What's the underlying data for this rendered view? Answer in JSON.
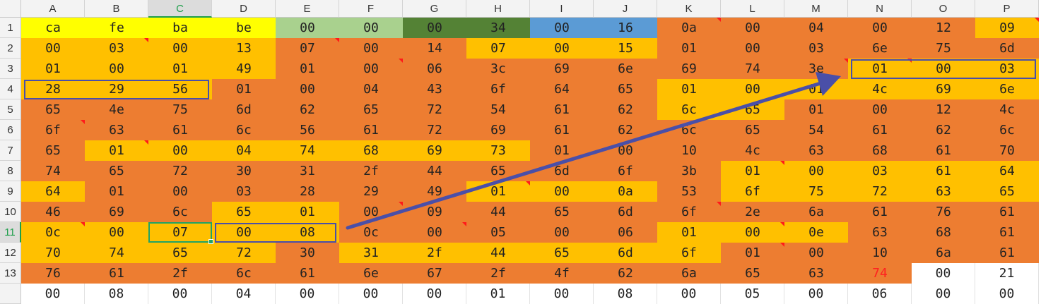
{
  "columns": [
    "A",
    "B",
    "C",
    "D",
    "E",
    "F",
    "G",
    "H",
    "I",
    "J",
    "K",
    "L",
    "M",
    "N",
    "O",
    "P"
  ],
  "rows": [
    "1",
    "2",
    "3",
    "4",
    "5",
    "6",
    "7",
    "8",
    "9",
    "10",
    "11",
    "12",
    "13",
    ""
  ],
  "selected_column": "C",
  "selected_row": "11",
  "colors": {
    "yellow": "#ffff00",
    "light_green": "#a9d18e",
    "dark_green": "#548235",
    "blue": "#5b9bd5",
    "orange": "#ed7d31",
    "gold": "#ffc000",
    "white": "#ffffff",
    "annotation_blue": "#4a4fa8",
    "active_green": "#21a366",
    "red_text": "#ff2020"
  },
  "cells": [
    [
      {
        "v": "ca",
        "c": "yellow"
      },
      {
        "v": "fe",
        "c": "yellow"
      },
      {
        "v": "ba",
        "c": "yellow"
      },
      {
        "v": "be",
        "c": "yellow"
      },
      {
        "v": "00",
        "c": "light_green"
      },
      {
        "v": "00",
        "c": "light_green"
      },
      {
        "v": "00",
        "c": "dark_green"
      },
      {
        "v": "34",
        "c": "dark_green"
      },
      {
        "v": "00",
        "c": "blue"
      },
      {
        "v": "16",
        "c": "blue"
      },
      {
        "v": "0a",
        "c": "orange",
        "n": true
      },
      {
        "v": "00",
        "c": "orange"
      },
      {
        "v": "04",
        "c": "orange"
      },
      {
        "v": "00",
        "c": "orange"
      },
      {
        "v": "12",
        "c": "orange"
      },
      {
        "v": "09",
        "c": "gold",
        "n": true
      }
    ],
    [
      {
        "v": "00",
        "c": "gold"
      },
      {
        "v": "03",
        "c": "gold",
        "n": true
      },
      {
        "v": "00",
        "c": "gold"
      },
      {
        "v": "13",
        "c": "gold"
      },
      {
        "v": "07",
        "c": "orange",
        "n": true
      },
      {
        "v": "00",
        "c": "orange"
      },
      {
        "v": "14",
        "c": "orange"
      },
      {
        "v": "07",
        "c": "gold"
      },
      {
        "v": "00",
        "c": "gold"
      },
      {
        "v": "15",
        "c": "gold"
      },
      {
        "v": "01",
        "c": "orange"
      },
      {
        "v": "00",
        "c": "orange"
      },
      {
        "v": "03",
        "c": "orange"
      },
      {
        "v": "6e",
        "c": "orange"
      },
      {
        "v": "75",
        "c": "orange"
      },
      {
        "v": "6d",
        "c": "orange"
      }
    ],
    [
      {
        "v": "01",
        "c": "gold"
      },
      {
        "v": "00",
        "c": "gold"
      },
      {
        "v": "01",
        "c": "gold"
      },
      {
        "v": "49",
        "c": "gold"
      },
      {
        "v": "01",
        "c": "orange"
      },
      {
        "v": "00",
        "c": "orange",
        "n": true
      },
      {
        "v": "06",
        "c": "orange"
      },
      {
        "v": "3c",
        "c": "orange"
      },
      {
        "v": "69",
        "c": "orange"
      },
      {
        "v": "6e",
        "c": "orange"
      },
      {
        "v": "69",
        "c": "orange"
      },
      {
        "v": "74",
        "c": "orange"
      },
      {
        "v": "3e",
        "c": "orange",
        "n": true
      },
      {
        "v": "01",
        "c": "gold",
        "n": true
      },
      {
        "v": "00",
        "c": "gold"
      },
      {
        "v": "03",
        "c": "gold"
      }
    ],
    [
      {
        "v": "28",
        "c": "gold"
      },
      {
        "v": "29",
        "c": "gold"
      },
      {
        "v": "56",
        "c": "gold"
      },
      {
        "v": "01",
        "c": "orange"
      },
      {
        "v": "00",
        "c": "orange"
      },
      {
        "v": "04",
        "c": "orange"
      },
      {
        "v": "43",
        "c": "orange"
      },
      {
        "v": "6f",
        "c": "orange"
      },
      {
        "v": "64",
        "c": "orange"
      },
      {
        "v": "65",
        "c": "orange"
      },
      {
        "v": "01",
        "c": "gold"
      },
      {
        "v": "00",
        "c": "gold"
      },
      {
        "v": "01",
        "c": "gold"
      },
      {
        "v": "4c",
        "c": "gold"
      },
      {
        "v": "69",
        "c": "gold"
      },
      {
        "v": "6e",
        "c": "gold"
      }
    ],
    [
      {
        "v": "65",
        "c": "orange"
      },
      {
        "v": "4e",
        "c": "orange"
      },
      {
        "v": "75",
        "c": "orange"
      },
      {
        "v": "6d",
        "c": "orange"
      },
      {
        "v": "62",
        "c": "orange"
      },
      {
        "v": "65",
        "c": "orange"
      },
      {
        "v": "72",
        "c": "orange"
      },
      {
        "v": "54",
        "c": "orange"
      },
      {
        "v": "61",
        "c": "orange"
      },
      {
        "v": "62",
        "c": "orange"
      },
      {
        "v": "6c",
        "c": "gold"
      },
      {
        "v": "65",
        "c": "gold"
      },
      {
        "v": "01",
        "c": "orange"
      },
      {
        "v": "00",
        "c": "orange"
      },
      {
        "v": "12",
        "c": "orange"
      },
      {
        "v": "4c",
        "c": "orange"
      }
    ],
    [
      {
        "v": "6f",
        "c": "orange",
        "n": true
      },
      {
        "v": "63",
        "c": "orange"
      },
      {
        "v": "61",
        "c": "orange"
      },
      {
        "v": "6c",
        "c": "orange"
      },
      {
        "v": "56",
        "c": "orange"
      },
      {
        "v": "61",
        "c": "orange"
      },
      {
        "v": "72",
        "c": "orange"
      },
      {
        "v": "69",
        "c": "orange"
      },
      {
        "v": "61",
        "c": "orange"
      },
      {
        "v": "62",
        "c": "orange"
      },
      {
        "v": "6c",
        "c": "orange"
      },
      {
        "v": "65",
        "c": "orange"
      },
      {
        "v": "54",
        "c": "orange"
      },
      {
        "v": "61",
        "c": "orange"
      },
      {
        "v": "62",
        "c": "orange"
      },
      {
        "v": "6c",
        "c": "orange"
      }
    ],
    [
      {
        "v": "65",
        "c": "orange"
      },
      {
        "v": "01",
        "c": "gold",
        "n": true
      },
      {
        "v": "00",
        "c": "gold"
      },
      {
        "v": "04",
        "c": "gold"
      },
      {
        "v": "74",
        "c": "gold"
      },
      {
        "v": "68",
        "c": "gold"
      },
      {
        "v": "69",
        "c": "gold"
      },
      {
        "v": "73",
        "c": "gold"
      },
      {
        "v": "01",
        "c": "orange"
      },
      {
        "v": "00",
        "c": "orange"
      },
      {
        "v": "10",
        "c": "orange"
      },
      {
        "v": "4c",
        "c": "orange"
      },
      {
        "v": "63",
        "c": "orange"
      },
      {
        "v": "68",
        "c": "orange"
      },
      {
        "v": "61",
        "c": "orange"
      },
      {
        "v": "70",
        "c": "orange"
      }
    ],
    [
      {
        "v": "74",
        "c": "orange"
      },
      {
        "v": "65",
        "c": "orange"
      },
      {
        "v": "72",
        "c": "orange"
      },
      {
        "v": "30",
        "c": "orange"
      },
      {
        "v": "31",
        "c": "orange"
      },
      {
        "v": "2f",
        "c": "orange"
      },
      {
        "v": "44",
        "c": "orange"
      },
      {
        "v": "65",
        "c": "orange"
      },
      {
        "v": "6d",
        "c": "orange"
      },
      {
        "v": "6f",
        "c": "orange"
      },
      {
        "v": "3b",
        "c": "orange"
      },
      {
        "v": "01",
        "c": "gold",
        "n": true
      },
      {
        "v": "00",
        "c": "gold"
      },
      {
        "v": "03",
        "c": "gold"
      },
      {
        "v": "61",
        "c": "gold"
      },
      {
        "v": "64",
        "c": "gold"
      }
    ],
    [
      {
        "v": "64",
        "c": "gold"
      },
      {
        "v": "01",
        "c": "orange"
      },
      {
        "v": "00",
        "c": "orange"
      },
      {
        "v": "03",
        "c": "orange"
      },
      {
        "v": "28",
        "c": "orange"
      },
      {
        "v": "29",
        "c": "orange"
      },
      {
        "v": "49",
        "c": "orange"
      },
      {
        "v": "01",
        "c": "gold",
        "n": true
      },
      {
        "v": "00",
        "c": "gold"
      },
      {
        "v": "0a",
        "c": "gold"
      },
      {
        "v": "53",
        "c": "orange"
      },
      {
        "v": "6f",
        "c": "gold"
      },
      {
        "v": "75",
        "c": "gold"
      },
      {
        "v": "72",
        "c": "gold"
      },
      {
        "v": "63",
        "c": "gold"
      },
      {
        "v": "65",
        "c": "gold"
      }
    ],
    [
      {
        "v": "46",
        "c": "orange"
      },
      {
        "v": "69",
        "c": "orange"
      },
      {
        "v": "6c",
        "c": "orange"
      },
      {
        "v": "65",
        "c": "gold"
      },
      {
        "v": "01",
        "c": "gold"
      },
      {
        "v": "00",
        "c": "orange",
        "n": true
      },
      {
        "v": "09",
        "c": "orange"
      },
      {
        "v": "44",
        "c": "orange"
      },
      {
        "v": "65",
        "c": "orange"
      },
      {
        "v": "6d",
        "c": "orange"
      },
      {
        "v": "6f",
        "c": "orange",
        "n": true
      },
      {
        "v": "2e",
        "c": "orange"
      },
      {
        "v": "6a",
        "c": "orange"
      },
      {
        "v": "61",
        "c": "orange"
      },
      {
        "v": "76",
        "c": "orange"
      },
      {
        "v": "61",
        "c": "orange"
      }
    ],
    [
      {
        "v": "0c",
        "c": "gold",
        "n": true
      },
      {
        "v": "00",
        "c": "gold"
      },
      {
        "v": "07",
        "c": "gold"
      },
      {
        "v": "00",
        "c": "gold"
      },
      {
        "v": "08",
        "c": "gold"
      },
      {
        "v": "0c",
        "c": "orange"
      },
      {
        "v": "00",
        "c": "orange",
        "n": true
      },
      {
        "v": "05",
        "c": "orange"
      },
      {
        "v": "00",
        "c": "orange"
      },
      {
        "v": "06",
        "c": "orange"
      },
      {
        "v": "01",
        "c": "gold"
      },
      {
        "v": "00",
        "c": "gold",
        "n": true
      },
      {
        "v": "0e",
        "c": "gold"
      },
      {
        "v": "63",
        "c": "orange"
      },
      {
        "v": "68",
        "c": "orange"
      },
      {
        "v": "61",
        "c": "orange"
      }
    ],
    [
      {
        "v": "70",
        "c": "gold"
      },
      {
        "v": "74",
        "c": "gold"
      },
      {
        "v": "65",
        "c": "gold"
      },
      {
        "v": "72",
        "c": "gold"
      },
      {
        "v": "30",
        "c": "orange"
      },
      {
        "v": "31",
        "c": "gold"
      },
      {
        "v": "2f",
        "c": "gold"
      },
      {
        "v": "44",
        "c": "gold"
      },
      {
        "v": "65",
        "c": "gold"
      },
      {
        "v": "6d",
        "c": "gold"
      },
      {
        "v": "6f",
        "c": "gold"
      },
      {
        "v": "01",
        "c": "orange",
        "n": true
      },
      {
        "v": "00",
        "c": "orange"
      },
      {
        "v": "10",
        "c": "orange"
      },
      {
        "v": "6a",
        "c": "orange"
      },
      {
        "v": "61",
        "c": "orange"
      }
    ],
    [
      {
        "v": "76",
        "c": "orange"
      },
      {
        "v": "61",
        "c": "orange"
      },
      {
        "v": "2f",
        "c": "orange"
      },
      {
        "v": "6c",
        "c": "orange"
      },
      {
        "v": "61",
        "c": "orange"
      },
      {
        "v": "6e",
        "c": "orange"
      },
      {
        "v": "67",
        "c": "orange"
      },
      {
        "v": "2f",
        "c": "orange"
      },
      {
        "v": "4f",
        "c": "orange"
      },
      {
        "v": "62",
        "c": "orange"
      },
      {
        "v": "6a",
        "c": "orange"
      },
      {
        "v": "65",
        "c": "orange"
      },
      {
        "v": "63",
        "c": "orange"
      },
      {
        "v": "74",
        "c": "orange",
        "red": true
      },
      {
        "v": "00",
        "c": "white"
      },
      {
        "v": "21",
        "c": "white"
      }
    ],
    [
      {
        "v": "00",
        "c": "white"
      },
      {
        "v": "08",
        "c": "white"
      },
      {
        "v": "00",
        "c": "white"
      },
      {
        "v": "04",
        "c": "white"
      },
      {
        "v": "00",
        "c": "white"
      },
      {
        "v": "00",
        "c": "white"
      },
      {
        "v": "00",
        "c": "white"
      },
      {
        "v": "01",
        "c": "white"
      },
      {
        "v": "00",
        "c": "white"
      },
      {
        "v": "08",
        "c": "white"
      },
      {
        "v": "00",
        "c": "white"
      },
      {
        "v": "05",
        "c": "white"
      },
      {
        "v": "00",
        "c": "white"
      },
      {
        "v": "06",
        "c": "white"
      },
      {
        "v": "00",
        "c": "white"
      },
      {
        "v": "00",
        "c": "white"
      }
    ]
  ],
  "annotations": {
    "boxes": [
      {
        "name": "box-row4-a-c",
        "row": 4,
        "col_start": "A",
        "col_end": "C"
      },
      {
        "name": "box-row3-n-p",
        "row": 3,
        "col_start": "N",
        "col_end": "P"
      },
      {
        "name": "box-row11-d-e",
        "row": 11,
        "col_start": "D",
        "col_end": "E"
      }
    ],
    "active_cell": {
      "row": 11,
      "col": "C"
    },
    "arrow": {
      "from": "row11-col-F-left",
      "to": "row3-col-N-left"
    }
  }
}
